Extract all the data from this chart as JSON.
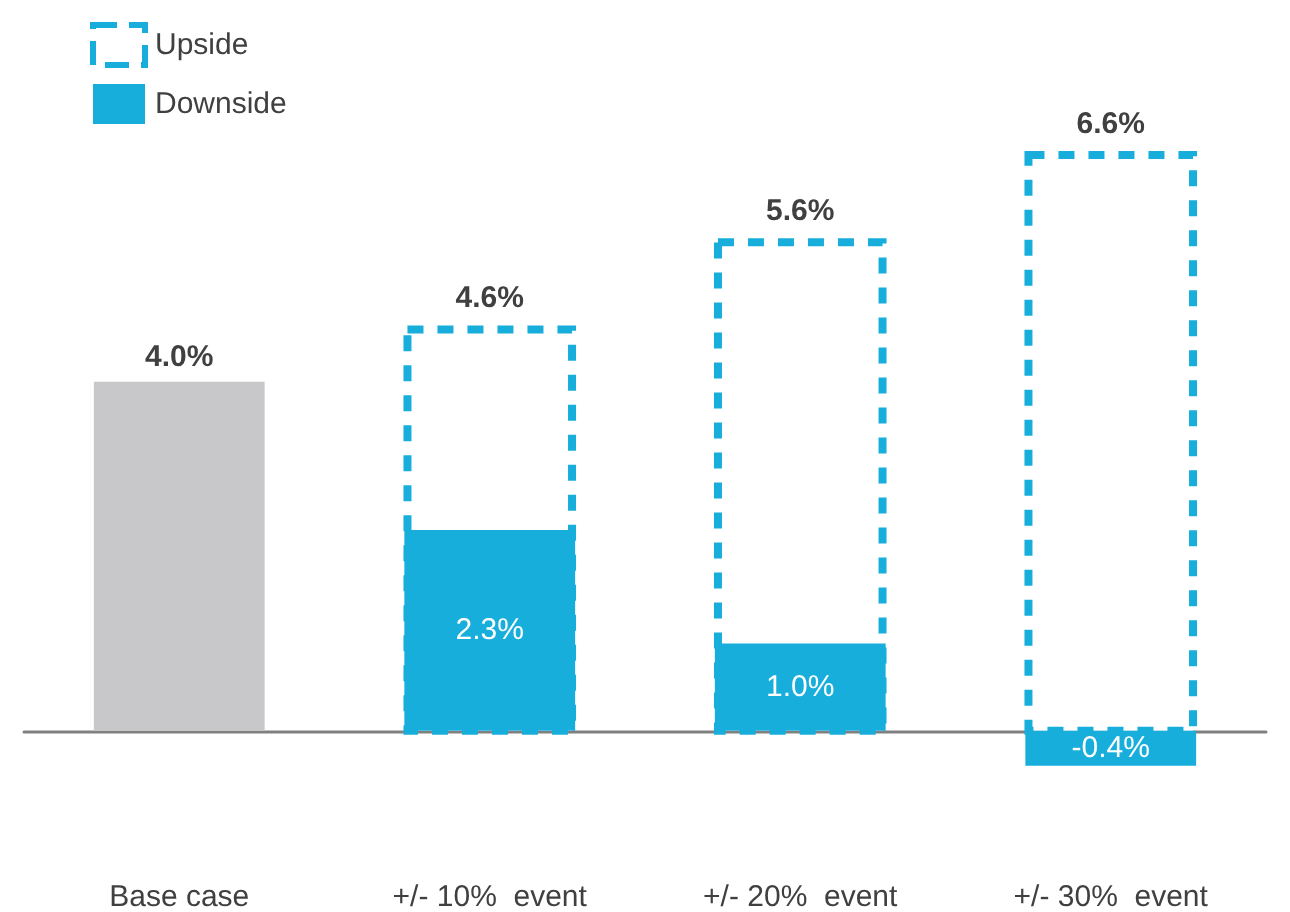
{
  "chart_data": {
    "type": "bar",
    "categories": [
      "Base case",
      "+/- 10%  event",
      "+/- 20%  event",
      "+/- 30%  event"
    ],
    "series": [
      {
        "color": "#c8c8ca",
        "values": [
          4.0,
          null,
          null,
          null
        ],
        "value_labels": [
          "4.0%",
          null,
          null,
          null
        ]
      },
      {
        "name": "Upside",
        "color": "#17aedc",
        "line_style": "dashed",
        "values": [
          null,
          4.6,
          5.6,
          6.6
        ],
        "value_labels": [
          null,
          "4.6%",
          "5.6%",
          "6.6%"
        ]
      },
      {
        "name": "Downside",
        "color": "#17aedc",
        "values": [
          null,
          2.3,
          1.0,
          -0.4
        ],
        "value_labels": [
          null,
          "2.3%",
          "1.0%",
          "-0.4%"
        ]
      }
    ],
    "legend": "top left"
  }
}
